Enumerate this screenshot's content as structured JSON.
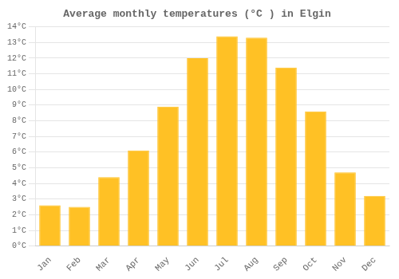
{
  "chart_data": {
    "type": "bar",
    "title": "Average monthly temperatures (°C ) in Elgin",
    "categories": [
      "Jan",
      "Feb",
      "Mar",
      "Apr",
      "May",
      "Jun",
      "Jul",
      "Aug",
      "Sep",
      "Oct",
      "Nov",
      "Dec"
    ],
    "values": [
      2.6,
      2.5,
      4.4,
      6.1,
      8.9,
      12.0,
      13.4,
      13.3,
      11.4,
      8.6,
      4.7,
      3.2
    ],
    "color": "#FFC125",
    "ylim": [
      0,
      14
    ],
    "yticks": [
      {
        "value": 0,
        "label": "0°C"
      },
      {
        "value": 1,
        "label": "1°C"
      },
      {
        "value": 2,
        "label": "2°C"
      },
      {
        "value": 3,
        "label": "3°C"
      },
      {
        "value": 4,
        "label": "4°C"
      },
      {
        "value": 5,
        "label": "5°C"
      },
      {
        "value": 6,
        "label": "6°C"
      },
      {
        "value": 7,
        "label": "7°C"
      },
      {
        "value": 8,
        "label": "8°C"
      },
      {
        "value": 9,
        "label": "9°C"
      },
      {
        "value": 10,
        "label": "10°C"
      },
      {
        "value": 11,
        "label": "11°C"
      },
      {
        "value": 12,
        "label": "12°C"
      },
      {
        "value": 13,
        "label": "13°C"
      },
      {
        "value": 14,
        "label": "14°C"
      }
    ],
    "grid": true
  }
}
